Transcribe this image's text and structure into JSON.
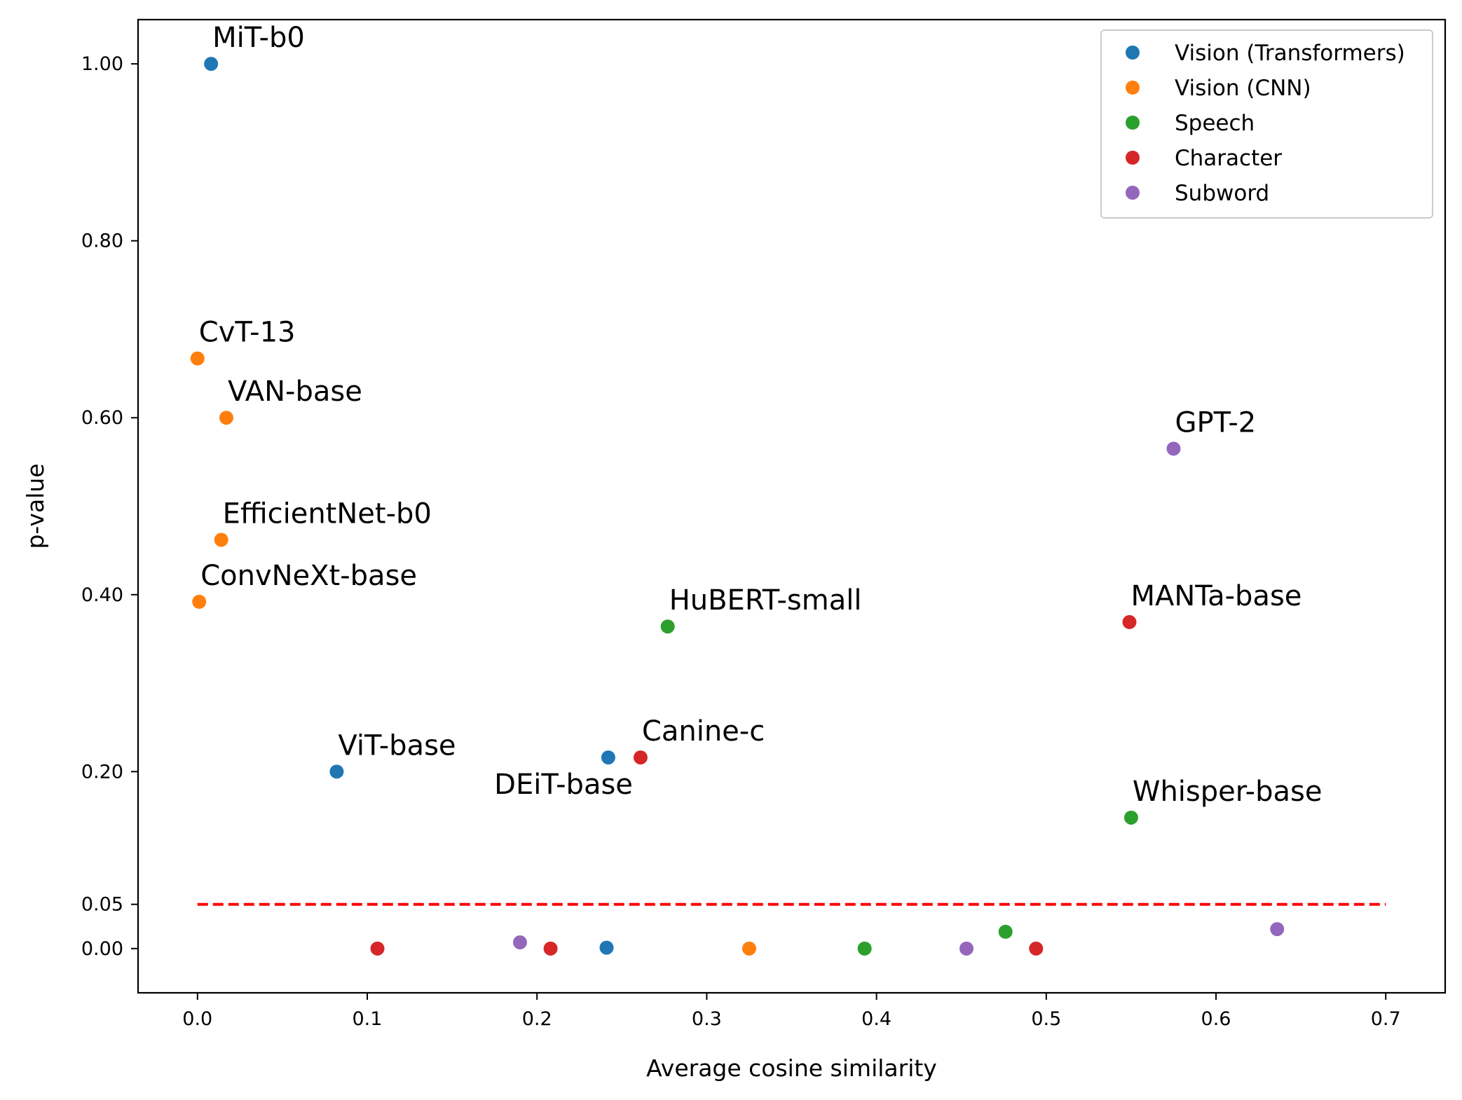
{
  "chart_data": {
    "type": "scatter",
    "xlabel": "Average cosine similarity",
    "ylabel": "p-value",
    "xlim": [
      -0.035,
      0.735
    ],
    "ylim": [
      -0.05,
      1.05
    ],
    "xticks": [
      0.0,
      0.1,
      0.2,
      0.3,
      0.4,
      0.5,
      0.6,
      0.7
    ],
    "xtick_labels": [
      "0.0",
      "0.1",
      "0.2",
      "0.3",
      "0.4",
      "0.5",
      "0.6",
      "0.7"
    ],
    "yticks": [
      0.0,
      0.05,
      0.2,
      0.4,
      0.6,
      0.8,
      1.0
    ],
    "ytick_labels": [
      "0.00",
      "0.05",
      "0.20",
      "0.40",
      "0.60",
      "0.80",
      "1.00"
    ],
    "grid": false,
    "legend_position": "top-right",
    "threshold": {
      "y": 0.05,
      "x_range": [
        0.0,
        0.7
      ],
      "color": "#ff0000",
      "style": "dashed"
    },
    "series": [
      {
        "name": "Vision (Transformers)",
        "color": "#1f77b4",
        "points": [
          {
            "x": 0.008,
            "y": 1.0,
            "label": "MiT-b0",
            "label_pos": "above-right"
          },
          {
            "x": 0.082,
            "y": 0.2,
            "label": "ViT-base",
            "label_pos": "above-right"
          },
          {
            "x": 0.242,
            "y": 0.216,
            "label": "DEiT-base",
            "label_pos": "below-left"
          },
          {
            "x": 0.241,
            "y": 0.001
          }
        ]
      },
      {
        "name": "Vision (CNN)",
        "color": "#ff7f0e",
        "points": [
          {
            "x": 0.0,
            "y": 0.667,
            "label": "CvT-13",
            "label_pos": "above-right"
          },
          {
            "x": 0.017,
            "y": 0.6,
            "label": "VAN-base",
            "label_pos": "above-right"
          },
          {
            "x": 0.014,
            "y": 0.462,
            "label": "EfficientNet-b0",
            "label_pos": "above-right"
          },
          {
            "x": 0.001,
            "y": 0.392,
            "label": "ConvNeXt-base",
            "label_pos": "above-right"
          },
          {
            "x": 0.325,
            "y": 0.0
          }
        ]
      },
      {
        "name": "Speech",
        "color": "#2ca02c",
        "points": [
          {
            "x": 0.277,
            "y": 0.364,
            "label": "HuBERT-small",
            "label_pos": "above-right"
          },
          {
            "x": 0.55,
            "y": 0.148,
            "label": "Whisper-base",
            "label_pos": "above-right"
          },
          {
            "x": 0.393,
            "y": 0.0
          },
          {
            "x": 0.476,
            "y": 0.019
          }
        ]
      },
      {
        "name": "Character",
        "color": "#d62728",
        "points": [
          {
            "x": 0.261,
            "y": 0.216,
            "label": "Canine-c",
            "label_pos": "above-right"
          },
          {
            "x": 0.549,
            "y": 0.369,
            "label": "MANTa-base",
            "label_pos": "above-right"
          },
          {
            "x": 0.106,
            "y": 0.0
          },
          {
            "x": 0.208,
            "y": 0.0
          },
          {
            "x": 0.494,
            "y": 0.0
          }
        ]
      },
      {
        "name": "Subword",
        "color": "#9467bd",
        "points": [
          {
            "x": 0.575,
            "y": 0.565,
            "label": "GPT-2",
            "label_pos": "above-right"
          },
          {
            "x": 0.19,
            "y": 0.007
          },
          {
            "x": 0.453,
            "y": 0.0
          },
          {
            "x": 0.636,
            "y": 0.022
          }
        ]
      }
    ]
  }
}
